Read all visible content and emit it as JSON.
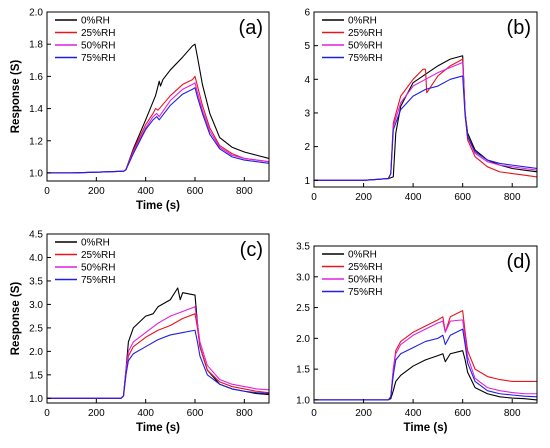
{
  "chart_data": [
    {
      "type": "line",
      "panel_label": "(a)",
      "xlabel": "Time (s)",
      "ylabel": "Response (S)",
      "xlim": [
        0,
        900
      ],
      "ylim": [
        0.95,
        2.0
      ],
      "xticks": [
        0,
        200,
        400,
        600,
        800
      ],
      "xtick_labels": [
        "0",
        "200",
        "400",
        "600",
        "800"
      ],
      "yticks": [
        1.0,
        1.2,
        1.4,
        1.6,
        1.8,
        2.0
      ],
      "ytick_labels": [
        "1.0",
        "1.2",
        "1.4",
        "1.6",
        "1.8",
        "2.0"
      ],
      "legend_position": "top-left",
      "series": [
        {
          "name": "0%RH",
          "color": "#000000",
          "x": [
            0,
            100,
            200,
            300,
            310,
            320,
            350,
            400,
            440,
            455,
            460,
            470,
            500,
            550,
            590,
            600,
            610,
            630,
            660,
            700,
            750,
            800,
            850,
            900
          ],
          "y": [
            1.0,
            1.0,
            1.005,
            1.01,
            1.01,
            1.02,
            1.15,
            1.33,
            1.48,
            1.57,
            1.54,
            1.58,
            1.64,
            1.72,
            1.79,
            1.8,
            1.72,
            1.55,
            1.37,
            1.22,
            1.16,
            1.13,
            1.11,
            1.09
          ]
        },
        {
          "name": "25%RH",
          "color": "#e8141e",
          "x": [
            0,
            100,
            200,
            300,
            310,
            320,
            350,
            400,
            430,
            440,
            450,
            500,
            550,
            590,
            600,
            610,
            630,
            660,
            700,
            750,
            800,
            850,
            900
          ],
          "y": [
            1.0,
            1.0,
            1.005,
            1.01,
            1.01,
            1.02,
            1.14,
            1.3,
            1.37,
            1.4,
            1.39,
            1.48,
            1.55,
            1.58,
            1.6,
            1.54,
            1.42,
            1.28,
            1.17,
            1.12,
            1.09,
            1.08,
            1.07
          ]
        },
        {
          "name": "50%RH",
          "color": "#e020e0",
          "x": [
            0,
            100,
            200,
            300,
            310,
            320,
            350,
            400,
            430,
            445,
            455,
            500,
            550,
            590,
            600,
            610,
            630,
            660,
            700,
            750,
            800,
            850,
            900
          ],
          "y": [
            1.0,
            1.0,
            1.005,
            1.01,
            1.01,
            1.02,
            1.13,
            1.28,
            1.35,
            1.37,
            1.35,
            1.45,
            1.52,
            1.55,
            1.56,
            1.5,
            1.39,
            1.26,
            1.16,
            1.11,
            1.09,
            1.08,
            1.07
          ]
        },
        {
          "name": "75%RH",
          "color": "#2020e0",
          "x": [
            0,
            100,
            200,
            300,
            310,
            320,
            350,
            400,
            430,
            445,
            455,
            500,
            550,
            590,
            600,
            610,
            630,
            660,
            700,
            750,
            800,
            850,
            900
          ],
          "y": [
            1.0,
            1.0,
            1.005,
            1.01,
            1.01,
            1.02,
            1.12,
            1.27,
            1.33,
            1.35,
            1.33,
            1.42,
            1.49,
            1.52,
            1.53,
            1.47,
            1.37,
            1.24,
            1.15,
            1.1,
            1.08,
            1.07,
            1.06
          ]
        }
      ]
    },
    {
      "type": "line",
      "panel_label": "(b)",
      "xlabel": "",
      "ylabel": "",
      "xlim": [
        0,
        900
      ],
      "ylim": [
        0.8,
        6.0
      ],
      "xticks": [
        0,
        200,
        400,
        600,
        800
      ],
      "xtick_labels": [
        "0",
        "200",
        "400",
        "600",
        "800"
      ],
      "yticks": [
        1,
        2,
        3,
        4,
        5,
        6
      ],
      "ytick_labels": [
        "1",
        "2",
        "3",
        "4",
        "5",
        "6"
      ],
      "legend_position": "top-left",
      "series": [
        {
          "name": "0%RH",
          "color": "#000000",
          "x": [
            0,
            100,
            200,
            300,
            320,
            330,
            350,
            400,
            440,
            460,
            500,
            550,
            600,
            610,
            620,
            650,
            700,
            750,
            800,
            850,
            900
          ],
          "y": [
            1.0,
            1.0,
            1.0,
            1.05,
            1.1,
            2.4,
            3.2,
            3.9,
            4.1,
            4.2,
            4.4,
            4.6,
            4.7,
            3.0,
            2.4,
            1.9,
            1.6,
            1.45,
            1.35,
            1.3,
            1.25
          ]
        },
        {
          "name": "25%RH",
          "color": "#e8141e",
          "x": [
            0,
            100,
            200,
            300,
            310,
            320,
            350,
            400,
            440,
            450,
            455,
            500,
            550,
            600,
            610,
            620,
            650,
            700,
            750,
            800,
            850,
            900
          ],
          "y": [
            1.0,
            1.0,
            1.0,
            1.05,
            1.2,
            2.7,
            3.5,
            4.0,
            4.3,
            4.3,
            3.6,
            4.1,
            4.4,
            4.6,
            3.0,
            2.2,
            1.7,
            1.4,
            1.25,
            1.2,
            1.15,
            1.1
          ]
        },
        {
          "name": "50%RH",
          "color": "#e020e0",
          "x": [
            0,
            100,
            200,
            300,
            310,
            320,
            350,
            400,
            450,
            500,
            550,
            600,
            610,
            620,
            650,
            700,
            750,
            800,
            850,
            900
          ],
          "y": [
            1.0,
            1.0,
            1.0,
            1.05,
            1.2,
            2.6,
            3.3,
            3.8,
            4.0,
            4.2,
            4.35,
            4.5,
            3.0,
            2.3,
            1.8,
            1.55,
            1.45,
            1.4,
            1.35,
            1.3
          ]
        },
        {
          "name": "75%RH",
          "color": "#2020e0",
          "x": [
            0,
            100,
            200,
            300,
            310,
            320,
            350,
            400,
            450,
            500,
            550,
            600,
            610,
            620,
            650,
            700,
            750,
            800,
            850,
            900
          ],
          "y": [
            1.0,
            1.0,
            1.0,
            1.05,
            1.2,
            2.5,
            3.1,
            3.5,
            3.7,
            3.8,
            4.0,
            4.1,
            2.9,
            2.3,
            1.85,
            1.6,
            1.5,
            1.45,
            1.4,
            1.35
          ]
        }
      ]
    },
    {
      "type": "line",
      "panel_label": "(c)",
      "xlabel": "Time (s)",
      "ylabel": "Response (S)",
      "xlim": [
        0,
        900
      ],
      "ylim": [
        0.9,
        4.5
      ],
      "xticks": [
        0,
        200,
        400,
        600,
        800
      ],
      "xtick_labels": [
        "0",
        "200",
        "400",
        "600",
        "800"
      ],
      "yticks": [
        1.0,
        1.5,
        2.0,
        2.5,
        3.0,
        3.5,
        4.0,
        4.5
      ],
      "ytick_labels": [
        "1.0",
        "1.5",
        "2.0",
        "2.5",
        "3.0",
        "3.5",
        "4.0",
        "4.5"
      ],
      "legend_position": "top-left",
      "series": [
        {
          "name": "0%RH",
          "color": "#000000",
          "x": [
            0,
            100,
            200,
            300,
            310,
            320,
            330,
            350,
            400,
            430,
            450,
            500,
            530,
            540,
            550,
            600,
            610,
            620,
            650,
            700,
            750,
            800,
            850,
            900
          ],
          "y": [
            1.0,
            1.0,
            1.0,
            1.0,
            1.05,
            1.6,
            2.2,
            2.5,
            2.75,
            2.8,
            2.95,
            3.1,
            3.35,
            3.1,
            3.25,
            3.2,
            2.6,
            2.1,
            1.6,
            1.3,
            1.2,
            1.15,
            1.1,
            1.08
          ]
        },
        {
          "name": "25%RH",
          "color": "#e8141e",
          "x": [
            0,
            100,
            200,
            300,
            310,
            320,
            330,
            350,
            400,
            450,
            500,
            550,
            600,
            610,
            620,
            650,
            700,
            750,
            800,
            850,
            900
          ],
          "y": [
            1.0,
            1.0,
            1.0,
            1.0,
            1.05,
            1.5,
            1.9,
            2.1,
            2.3,
            2.45,
            2.55,
            2.7,
            2.8,
            2.5,
            2.1,
            1.6,
            1.35,
            1.25,
            1.2,
            1.15,
            1.12
          ]
        },
        {
          "name": "50%RH",
          "color": "#e020e0",
          "x": [
            0,
            100,
            200,
            300,
            310,
            320,
            330,
            350,
            400,
            450,
            500,
            550,
            600,
            610,
            620,
            650,
            700,
            750,
            800,
            850,
            900
          ],
          "y": [
            1.0,
            1.0,
            1.0,
            1.0,
            1.05,
            1.6,
            2.0,
            2.2,
            2.4,
            2.6,
            2.75,
            2.85,
            2.95,
            2.6,
            2.2,
            1.7,
            1.4,
            1.3,
            1.25,
            1.2,
            1.18
          ]
        },
        {
          "name": "75%RH",
          "color": "#2020e0",
          "x": [
            0,
            100,
            200,
            300,
            310,
            320,
            330,
            350,
            400,
            450,
            500,
            550,
            600,
            610,
            620,
            650,
            700,
            750,
            800,
            850,
            900
          ],
          "y": [
            1.0,
            1.0,
            1.0,
            1.0,
            1.05,
            1.5,
            1.8,
            1.95,
            2.1,
            2.25,
            2.35,
            2.4,
            2.45,
            2.2,
            1.9,
            1.5,
            1.3,
            1.2,
            1.15,
            1.12,
            1.1
          ]
        }
      ]
    },
    {
      "type": "line",
      "panel_label": "(d)",
      "xlabel": "Time (s)",
      "ylabel": "",
      "xlim": [
        0,
        900
      ],
      "ylim": [
        0.95,
        3.5
      ],
      "xticks": [
        0,
        200,
        400,
        600,
        800
      ],
      "xtick_labels": [
        "0",
        "200",
        "400",
        "600",
        "800"
      ],
      "yticks": [
        1.0,
        1.5,
        2.0,
        2.5,
        3.0,
        3.5
      ],
      "ytick_labels": [
        "1.0",
        "1.5",
        "2.0",
        "2.5",
        "3.0",
        "3.5"
      ],
      "legend_position": "top-left",
      "series": [
        {
          "name": "0%RH",
          "color": "#000000",
          "x": [
            0,
            100,
            200,
            300,
            310,
            320,
            330,
            350,
            400,
            450,
            500,
            520,
            530,
            550,
            600,
            610,
            620,
            650,
            700,
            750,
            800,
            850,
            900
          ],
          "y": [
            1.0,
            1.0,
            1.0,
            1.0,
            1.02,
            1.15,
            1.3,
            1.4,
            1.55,
            1.65,
            1.72,
            1.75,
            1.62,
            1.75,
            1.8,
            1.65,
            1.45,
            1.2,
            1.1,
            1.05,
            1.03,
            1.02,
            1.0
          ]
        },
        {
          "name": "25%RH",
          "color": "#e8141e",
          "x": [
            0,
            100,
            200,
            300,
            310,
            320,
            330,
            350,
            400,
            450,
            500,
            520,
            530,
            550,
            600,
            610,
            620,
            650,
            700,
            750,
            800,
            850,
            900
          ],
          "y": [
            1.0,
            1.0,
            1.0,
            1.0,
            1.05,
            1.5,
            1.8,
            1.95,
            2.1,
            2.2,
            2.3,
            2.35,
            2.1,
            2.35,
            2.45,
            2.1,
            1.8,
            1.5,
            1.38,
            1.33,
            1.3,
            1.3,
            1.3
          ]
        },
        {
          "name": "50%RH",
          "color": "#e020e0",
          "x": [
            0,
            100,
            200,
            300,
            310,
            320,
            330,
            350,
            400,
            450,
            500,
            520,
            530,
            550,
            600,
            610,
            620,
            650,
            700,
            750,
            800,
            850,
            900
          ],
          "y": [
            1.0,
            1.0,
            1.0,
            1.0,
            1.05,
            1.5,
            1.75,
            1.9,
            2.05,
            2.15,
            2.25,
            2.28,
            2.1,
            2.28,
            2.3,
            2.0,
            1.7,
            1.35,
            1.2,
            1.15,
            1.12,
            1.1,
            1.1
          ]
        },
        {
          "name": "75%RH",
          "color": "#2020e0",
          "x": [
            0,
            100,
            200,
            300,
            310,
            320,
            330,
            350,
            400,
            450,
            500,
            520,
            530,
            550,
            600,
            610,
            620,
            650,
            700,
            750,
            800,
            850,
            900
          ],
          "y": [
            1.0,
            1.0,
            1.0,
            1.0,
            1.05,
            1.4,
            1.65,
            1.75,
            1.85,
            1.95,
            2.0,
            2.05,
            1.9,
            2.05,
            2.15,
            1.9,
            1.6,
            1.3,
            1.15,
            1.1,
            1.08,
            1.06,
            1.05
          ]
        }
      ]
    }
  ]
}
